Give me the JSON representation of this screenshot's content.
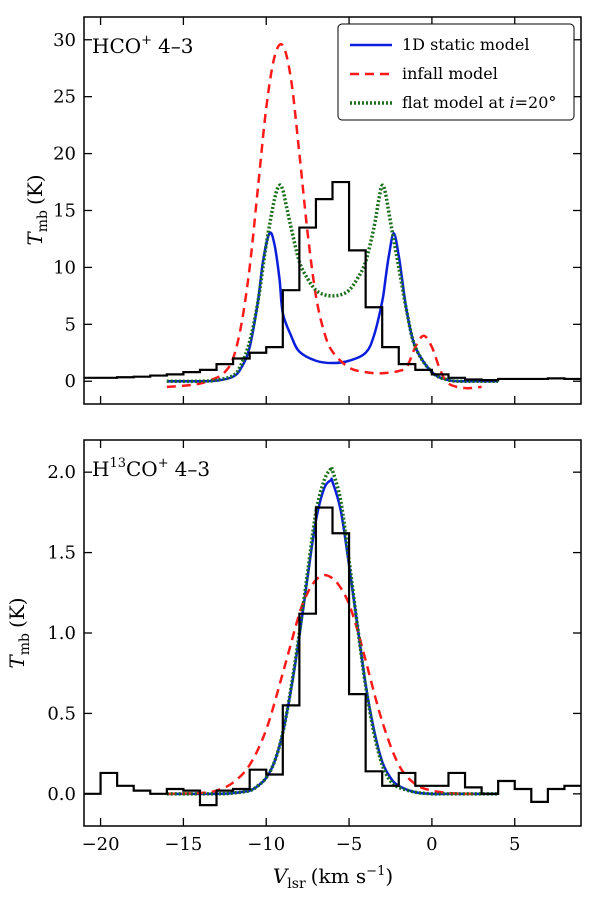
{
  "chart_data": [
    {
      "type": "line",
      "title": "HCO⁺ 4–3",
      "title_parts": {
        "base": "HCO",
        "sup": "+",
        "suffix": "4–3"
      },
      "ylabel": "T",
      "ylabel_sub": "mb",
      "ylabel_unit": "(K)",
      "xlim": [
        -21,
        9
      ],
      "ylim": [
        -2,
        32
      ],
      "xticks": [
        -20,
        -15,
        -10,
        -5,
        0,
        5
      ],
      "xtick_labels": [
        "",
        "",
        "",
        "",
        "",
        ""
      ],
      "yticks": [
        0,
        5,
        10,
        15,
        20,
        25,
        30
      ],
      "ytick_labels": [
        "0",
        "5",
        "10",
        "15",
        "20",
        "25",
        "30"
      ],
      "grid": false,
      "legend": "top-right",
      "legend_entries": [
        "1D static model",
        "infall model",
        "flat model at i=20°"
      ],
      "legend_parts": [
        {
          "text": "1D static model"
        },
        {
          "text": "infall model"
        },
        {
          "pre": "flat model at ",
          "ital": "i",
          "post": "=20°"
        }
      ],
      "series": [
        {
          "name": "observed",
          "style": "step",
          "color": "#000000",
          "dash": "solid",
          "x": [
            -21,
            -20,
            -19,
            -18,
            -17,
            -16,
            -15,
            -14,
            -13,
            -12,
            -11,
            -10,
            -9,
            -8,
            -7,
            -6,
            -5,
            -4,
            -3,
            -2,
            -1,
            0,
            1,
            2,
            3,
            4,
            5,
            6,
            7,
            8,
            9
          ],
          "y": [
            0.3,
            0.3,
            0.35,
            0.4,
            0.5,
            0.6,
            0.8,
            1.0,
            1.5,
            2.0,
            2.5,
            3.0,
            8.0,
            13.5,
            16.0,
            17.5,
            11.5,
            6.5,
            3.0,
            1.5,
            1.0,
            0.6,
            0.3,
            0.15,
            0.1,
            0.2,
            0.2,
            0.2,
            0.25,
            0.2,
            0.2
          ]
        },
        {
          "name": "1D static model",
          "style": "smooth",
          "color": "#0a1edc",
          "dash": "solid",
          "x": [
            -16,
            -14,
            -13,
            -12,
            -11.5,
            -11,
            -10.5,
            -10.2,
            -9.8,
            -9.5,
            -9.2,
            -9.0,
            -8.5,
            -8,
            -7,
            -6,
            -5,
            -4,
            -3.5,
            -3,
            -2.8,
            -2.6,
            -2.3,
            -2.0,
            -1.8,
            -1.5,
            -1,
            0,
            1,
            2,
            3,
            4
          ],
          "y": [
            0,
            0,
            0.05,
            0.4,
            1.2,
            3.0,
            7.0,
            10.5,
            13.0,
            12.0,
            9.0,
            6.0,
            4.0,
            2.6,
            1.8,
            1.6,
            1.8,
            2.5,
            4.0,
            7.0,
            9.0,
            11.0,
            13.0,
            11.0,
            9.0,
            6.0,
            3.0,
            0.8,
            0.1,
            0,
            0,
            0
          ]
        },
        {
          "name": "infall model",
          "style": "smooth",
          "color": "#ff1a1a",
          "dash": "dashed",
          "x": [
            -16,
            -15,
            -14,
            -13,
            -12.5,
            -12,
            -11.5,
            -11,
            -10.5,
            -10,
            -9.5,
            -9,
            -8.5,
            -8,
            -7.5,
            -7,
            -6.5,
            -6,
            -5,
            -4,
            -3,
            -2,
            -1.5,
            -1,
            -0.5,
            0,
            0.5,
            1,
            2,
            3
          ],
          "y": [
            -0.5,
            -0.4,
            -0.2,
            0.3,
            0.8,
            2.0,
            5.0,
            10.0,
            17.0,
            24.0,
            28.5,
            29.5,
            26.5,
            20.0,
            13.0,
            7.5,
            4.3,
            2.6,
            1.2,
            0.8,
            0.7,
            0.9,
            1.3,
            3.0,
            4.0,
            3.0,
            1.0,
            -0.2,
            -0.6,
            -0.5
          ]
        },
        {
          "name": "flat model at i=20°",
          "style": "smooth",
          "color": "#1b6e1b",
          "dash": "dotted",
          "x": [
            -16,
            -14,
            -13,
            -12,
            -11.5,
            -11,
            -10.5,
            -10,
            -9.5,
            -9.2,
            -9.0,
            -8.8,
            -8.5,
            -8,
            -7.5,
            -7,
            -6.5,
            -6,
            -5.5,
            -5,
            -4.5,
            -4,
            -3.5,
            -3.2,
            -3.0,
            -2.8,
            -2.5,
            -2,
            -1.5,
            -1,
            0,
            1,
            2,
            3,
            4
          ],
          "y": [
            0,
            0,
            0.1,
            0.5,
            1.5,
            3.5,
            7.0,
            12.0,
            16.0,
            17.2,
            16.8,
            15.5,
            13.5,
            10.5,
            9.0,
            8.0,
            7.6,
            7.5,
            7.6,
            8.0,
            9.0,
            10.5,
            13.5,
            16.0,
            17.2,
            16.5,
            14.0,
            10.0,
            6.0,
            3.0,
            0.8,
            0.1,
            0,
            0,
            0
          ]
        }
      ]
    },
    {
      "type": "line",
      "title": "H¹³CO⁺ 4–3",
      "title_parts": {
        "pre": "H",
        "sup1": "13",
        "mid": "CO",
        "sup2": "+",
        "suffix": "4–3"
      },
      "ylabel": "T",
      "ylabel_sub": "mb",
      "ylabel_unit": "(K)",
      "xlabel": "V",
      "xlabel_sub": "lsr",
      "xlabel_unit_pre": "(km s",
      "xlabel_unit_sup": "−1",
      "xlabel_unit_post": ")",
      "xlim": [
        -21,
        9
      ],
      "ylim": [
        -0.2,
        2.2
      ],
      "xticks": [
        -20,
        -15,
        -10,
        -5,
        0,
        5
      ],
      "xtick_labels": [
        "−20",
        "−15",
        "−10",
        "−5",
        "0",
        "5"
      ],
      "yticks": [
        0.0,
        0.5,
        1.0,
        1.5,
        2.0
      ],
      "ytick_labels": [
        "0.0",
        "0.5",
        "1.0",
        "1.5",
        "2.0"
      ],
      "grid": false,
      "series": [
        {
          "name": "observed",
          "style": "step",
          "color": "#000000",
          "dash": "solid",
          "x": [
            -21,
            -20,
            -19,
            -18,
            -17,
            -16,
            -15,
            -14,
            -13,
            -12,
            -11,
            -10,
            -9,
            -8,
            -7,
            -6,
            -5,
            -4,
            -3,
            -2,
            -1,
            0,
            1,
            2,
            3,
            4,
            5,
            6,
            7,
            8,
            9
          ],
          "y": [
            0.0,
            0.13,
            0.05,
            0.02,
            0.0,
            0.03,
            0.02,
            -0.07,
            0.02,
            0.03,
            0.15,
            0.12,
            0.55,
            1.12,
            1.78,
            1.62,
            0.62,
            0.14,
            0.05,
            0.13,
            0.05,
            0.05,
            0.13,
            0.04,
            0.0,
            0.08,
            0.03,
            -0.05,
            0.03,
            0.05,
            0.05
          ]
        },
        {
          "name": "1D static model",
          "style": "smooth",
          "color": "#0a1edc",
          "dash": "solid",
          "x": [
            -16,
            -13,
            -12,
            -11,
            -10.5,
            -10,
            -9.5,
            -9,
            -8.5,
            -8,
            -7.5,
            -7,
            -6.5,
            -6.1,
            -6.0,
            -5.5,
            -5,
            -4.5,
            -4,
            -3.5,
            -3,
            -2.5,
            -2,
            -1,
            0,
            1,
            2,
            3,
            4
          ],
          "y": [
            0,
            0,
            0.005,
            0.02,
            0.05,
            0.1,
            0.2,
            0.38,
            0.65,
            0.98,
            1.35,
            1.7,
            1.9,
            1.95,
            1.94,
            1.76,
            1.42,
            1.05,
            0.68,
            0.4,
            0.2,
            0.1,
            0.05,
            0.01,
            0,
            0,
            0,
            0,
            0
          ]
        },
        {
          "name": "infall model",
          "style": "smooth",
          "color": "#ff1a1a",
          "dash": "dashed",
          "x": [
            -16,
            -14,
            -13,
            -12,
            -11,
            -10,
            -9,
            -8,
            -7.5,
            -7,
            -6.5,
            -6,
            -5.5,
            -5,
            -4.5,
            -4,
            -3,
            -2,
            -1,
            0,
            1,
            2,
            3
          ],
          "y": [
            0,
            0.005,
            0.02,
            0.07,
            0.18,
            0.4,
            0.75,
            1.12,
            1.25,
            1.33,
            1.36,
            1.34,
            1.28,
            1.18,
            1.02,
            0.83,
            0.45,
            0.18,
            0.06,
            0.02,
            0.005,
            0,
            0
          ]
        },
        {
          "name": "flat model at i=20°",
          "style": "smooth",
          "color": "#1b6e1b",
          "dash": "dotted",
          "x": [
            -16,
            -13,
            -12,
            -11,
            -10.5,
            -10,
            -9.5,
            -9,
            -8.5,
            -8,
            -7.5,
            -7,
            -6.5,
            -6.1,
            -6.0,
            -5.5,
            -5,
            -4.5,
            -4,
            -3.5,
            -3,
            -2.5,
            -2,
            -1,
            0,
            1,
            2,
            3,
            4
          ],
          "y": [
            0,
            0,
            0.005,
            0.02,
            0.05,
            0.1,
            0.2,
            0.38,
            0.66,
            1.0,
            1.38,
            1.75,
            1.95,
            2.02,
            2.01,
            1.82,
            1.45,
            1.05,
            0.67,
            0.38,
            0.18,
            0.08,
            0.04,
            0.01,
            0,
            0,
            0,
            0,
            0
          ]
        }
      ]
    }
  ]
}
